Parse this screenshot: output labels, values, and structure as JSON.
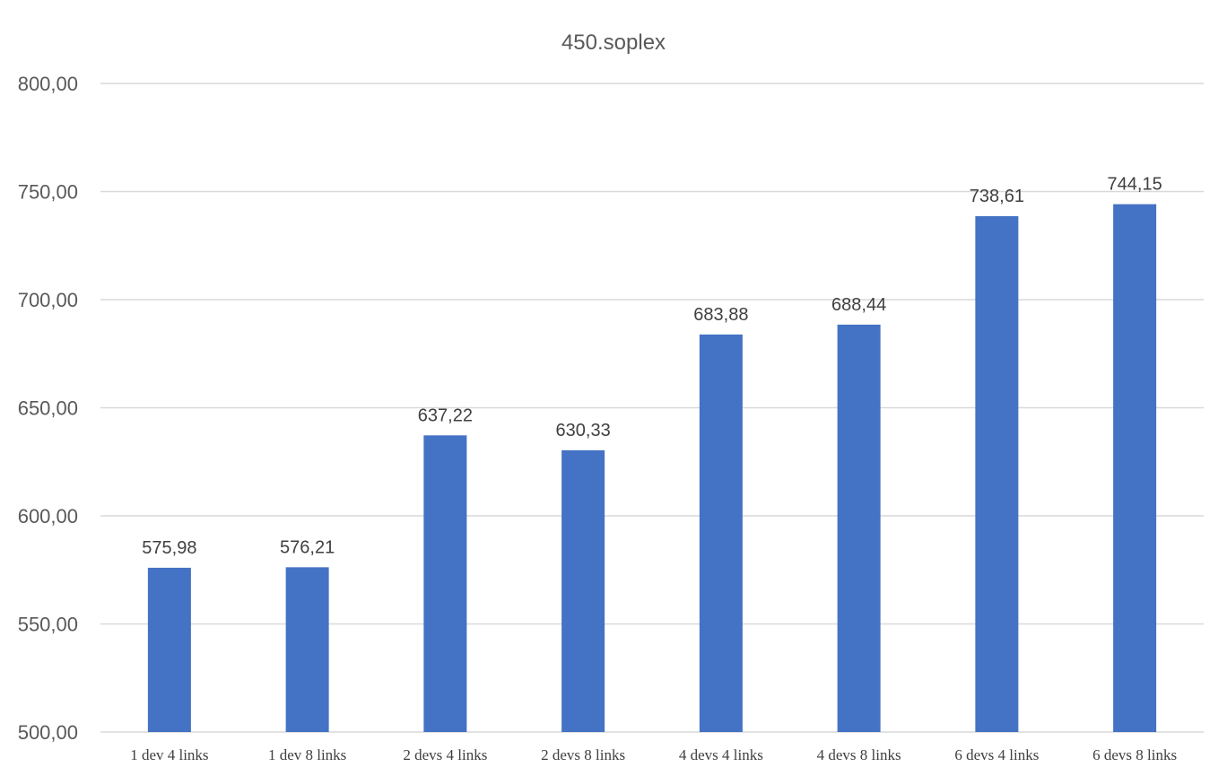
{
  "chart_data": {
    "type": "bar",
    "title": "450.soplex",
    "categories": [
      "1 dev 4 links",
      "1 dev 8 links",
      "2 devs 4 links",
      "2 devs 8 links",
      "4 devs 4 links",
      "4 devs 8 links",
      "6 devs 4 links",
      "6 devs 8 links"
    ],
    "values": [
      575.98,
      576.21,
      637.22,
      630.33,
      683.88,
      688.44,
      738.61,
      744.15
    ],
    "data_labels": [
      "575,98",
      "576,21",
      "637,22",
      "630,33",
      "683,88",
      "688,44",
      "738,61",
      "744,15"
    ],
    "xlabel": "",
    "ylabel": "",
    "ylim": [
      500,
      800
    ],
    "yticks": [
      500,
      550,
      600,
      650,
      700,
      750,
      800
    ],
    "ytick_labels": [
      "500,00",
      "550,00",
      "600,00",
      "650,00",
      "700,00",
      "750,00",
      "800,00"
    ],
    "grid": true,
    "legend": "none",
    "colors": {
      "bar": "#4472C4",
      "grid": "#D9D9D9",
      "title": "#595959",
      "ticks": "#595959",
      "labels": "#404040"
    }
  }
}
